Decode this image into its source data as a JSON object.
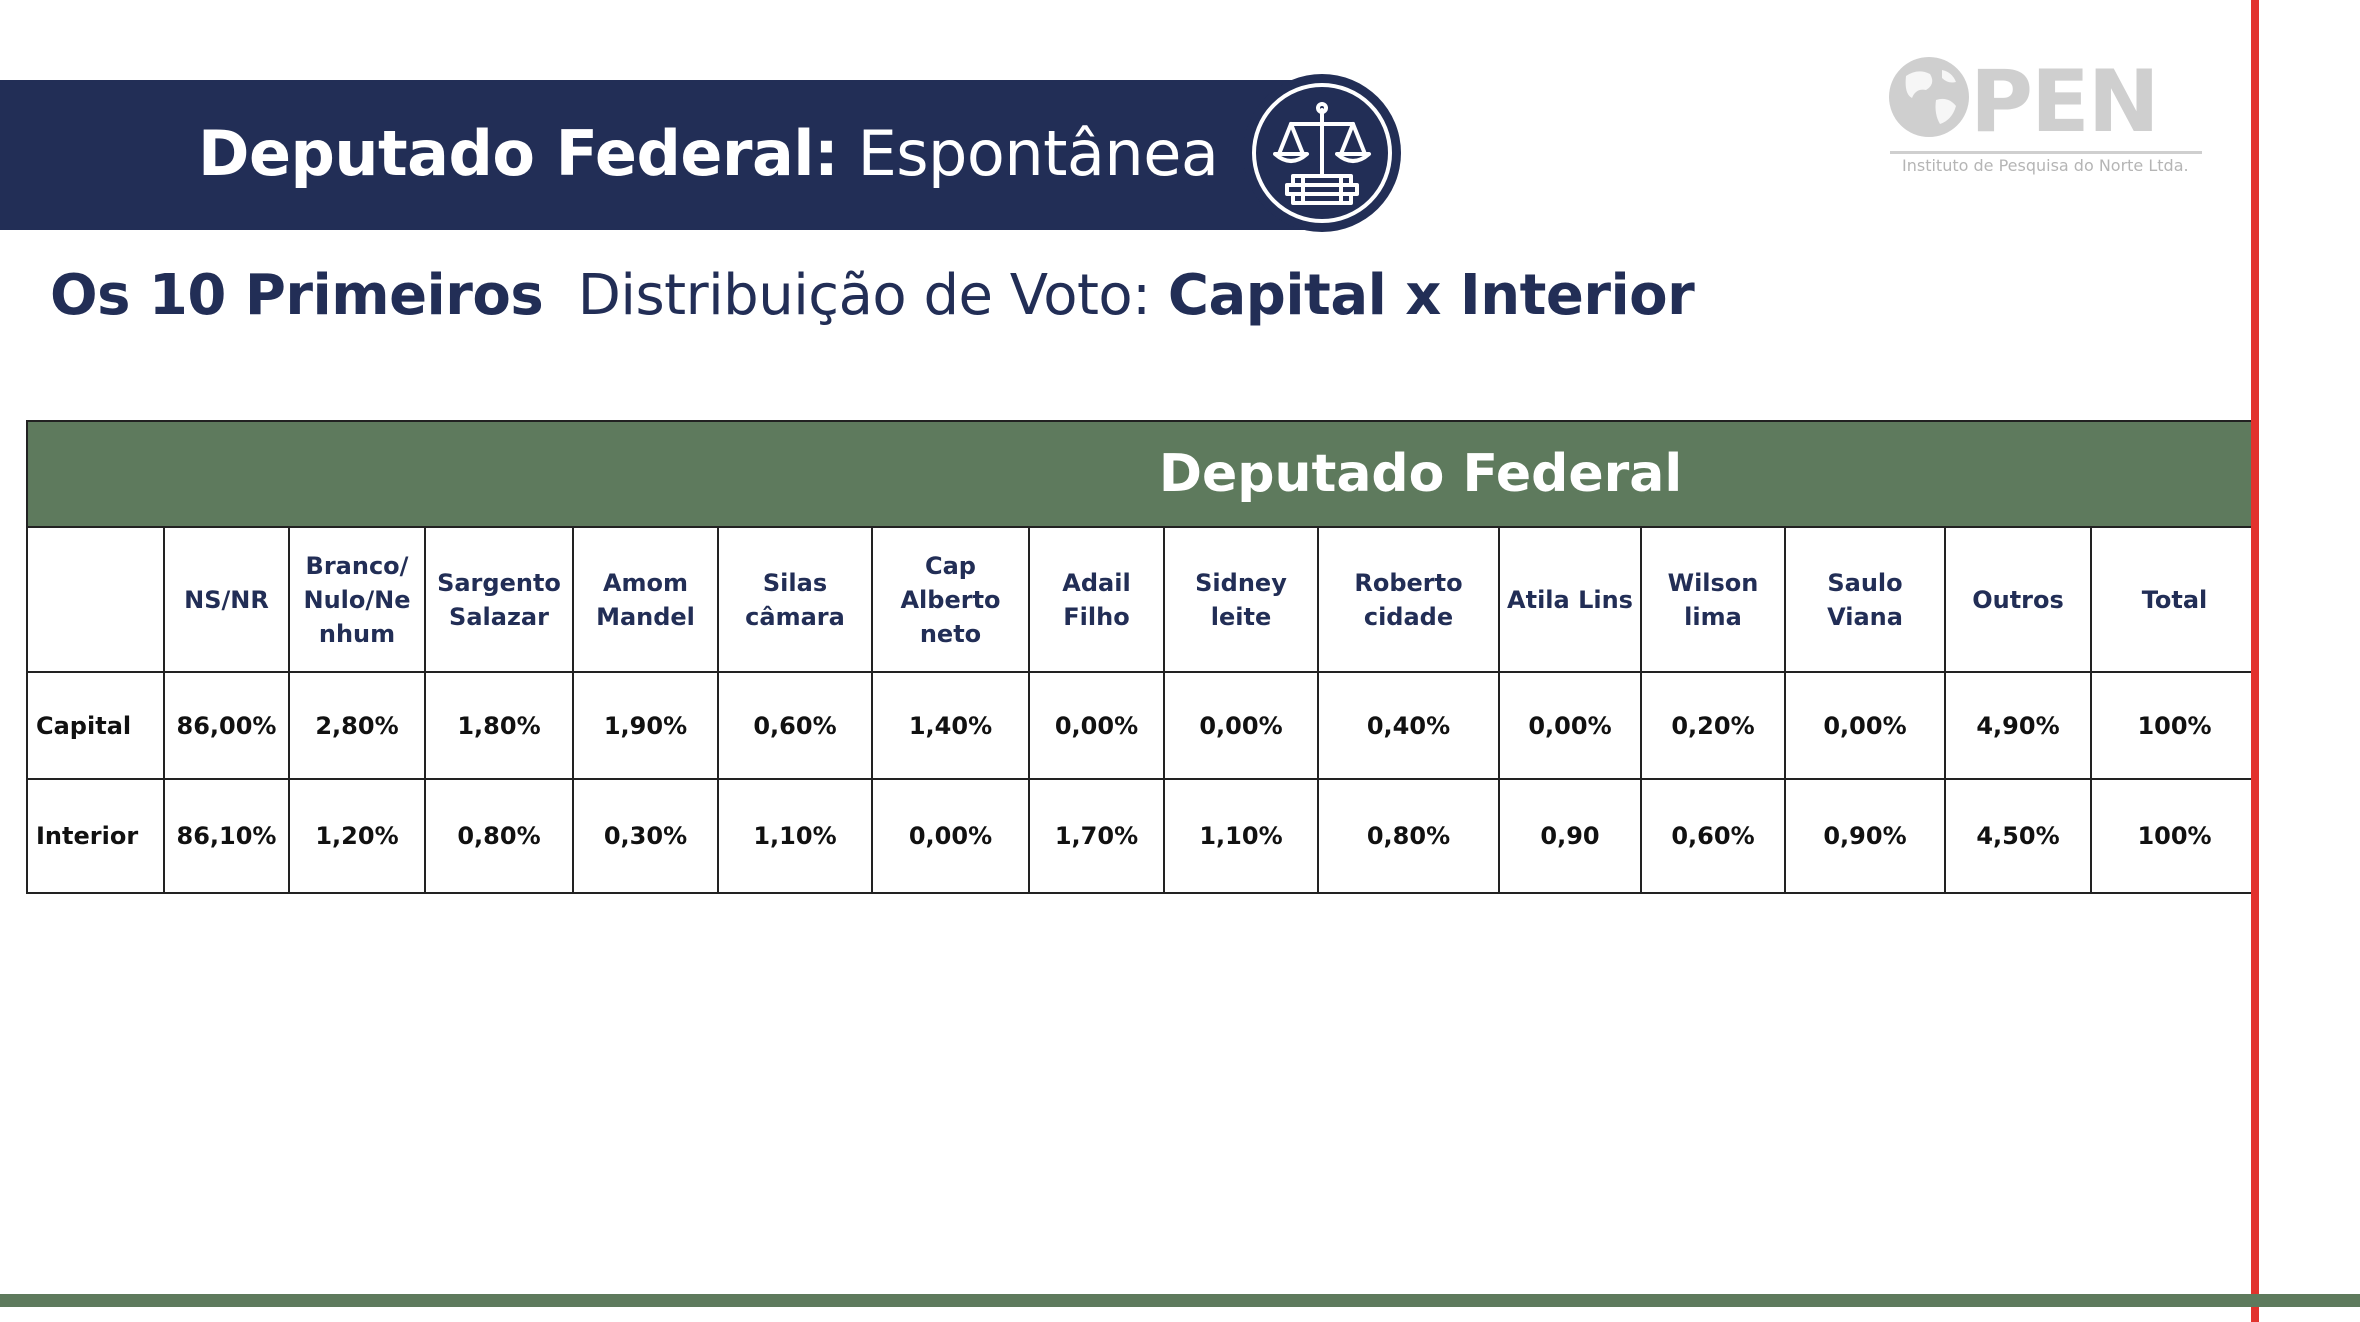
{
  "header": {
    "title_bold": "Deputado Federal:",
    "title_light": " Espontânea"
  },
  "logo": {
    "wordmark": "PEN",
    "tagline": "Instituto de Pesquisa do Norte Ltda."
  },
  "subtitle": {
    "lead": "Os 10 Primeiros",
    "middle": "Distribuição de Voto:",
    "tail": "Capital x Interior"
  },
  "table": {
    "banner": "Deputado Federal",
    "columns": [
      "",
      "NS/NR",
      "Branco/ Nulo/Ne nhum",
      "Sargento Salazar",
      "Amom Mandel",
      "Silas câmara",
      "Cap Alberto neto",
      "Adail Filho",
      "Sidney leite",
      "Roberto cidade",
      "Atila Lins",
      "Wilson lima",
      "Saulo Viana",
      "Outros",
      "Total"
    ],
    "rows": [
      {
        "label": "Capital",
        "values": [
          "86,00%",
          "2,80%",
          "1,80%",
          "1,90%",
          "0,60%",
          "1,40%",
          "0,00%",
          "0,00%",
          "0,40%",
          "0,00%",
          "0,20%",
          "0,00%",
          "4,90%",
          "100%"
        ]
      },
      {
        "label": "Interior",
        "values": [
          "86,10%",
          "1,20%",
          "0,80%",
          "0,30%",
          "1,10%",
          "0,00%",
          "1,70%",
          "1,10%",
          "0,80%",
          "0,90",
          "0,60%",
          "0,90%",
          "4,50%",
          "100%"
        ]
      }
    ]
  },
  "colors": {
    "navy": "#222e56",
    "green": "#5e7a5d",
    "red": "#e2322d",
    "total_text": "#d0322b"
  }
}
